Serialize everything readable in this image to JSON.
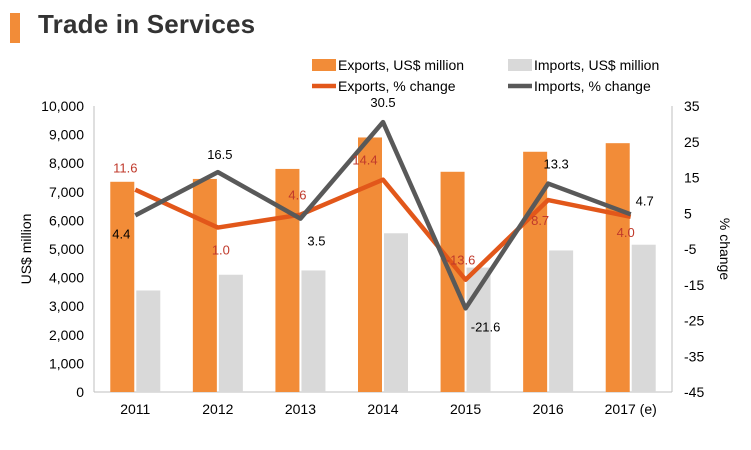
{
  "title": "Trade in Services",
  "colors": {
    "accent": "#f28c38",
    "exports_bar": "#f28c38",
    "imports_bar": "#d9d9d9",
    "exports_line": "#e2571a",
    "imports_line": "#595959",
    "exports_label": "#c0392b",
    "imports_label": "#000000"
  },
  "chart_data": {
    "type": "bar+line",
    "categories": [
      "2011",
      "2012",
      "2013",
      "2014",
      "2015",
      "2016",
      "2017 (e)"
    ],
    "series": [
      {
        "name": "Exports, US$ million",
        "type": "bar",
        "axis": "left",
        "values": [
          7350,
          7450,
          7800,
          8900,
          7700,
          8400,
          8700
        ]
      },
      {
        "name": "Imports, US$ million",
        "type": "bar",
        "axis": "left",
        "values": [
          3550,
          4100,
          4250,
          5550,
          4350,
          4950,
          5150
        ]
      },
      {
        "name": "Exports, % change",
        "type": "line",
        "axis": "right",
        "values": [
          11.6,
          1.0,
          4.6,
          14.4,
          -13.6,
          8.7,
          4.0
        ],
        "labels": [
          "11.6",
          "1.0",
          "4.6",
          "14.4",
          "-13.6",
          "8.7",
          "4.0"
        ]
      },
      {
        "name": "Imports, % change",
        "type": "line",
        "axis": "right",
        "values": [
          4.4,
          16.5,
          3.5,
          30.5,
          -21.6,
          13.3,
          4.7
        ],
        "labels": [
          "4.4",
          "16.5",
          "3.5",
          "30.5",
          "-21.6",
          "13.3",
          "4.7"
        ]
      }
    ],
    "ylabel": "US$ million",
    "y2label": "% change",
    "ylim": [
      0,
      10000
    ],
    "y2lim": [
      -45,
      35
    ],
    "yticks": [
      "0",
      "1,000",
      "2,000",
      "3,000",
      "4,000",
      "5,000",
      "6,000",
      "7,000",
      "8,000",
      "9,000",
      "10,000"
    ],
    "y2ticks": [
      "-45",
      "-35",
      "-25",
      "-15",
      "-5",
      "5",
      "15",
      "25",
      "35"
    ],
    "grid": false,
    "legend_position": "top"
  }
}
